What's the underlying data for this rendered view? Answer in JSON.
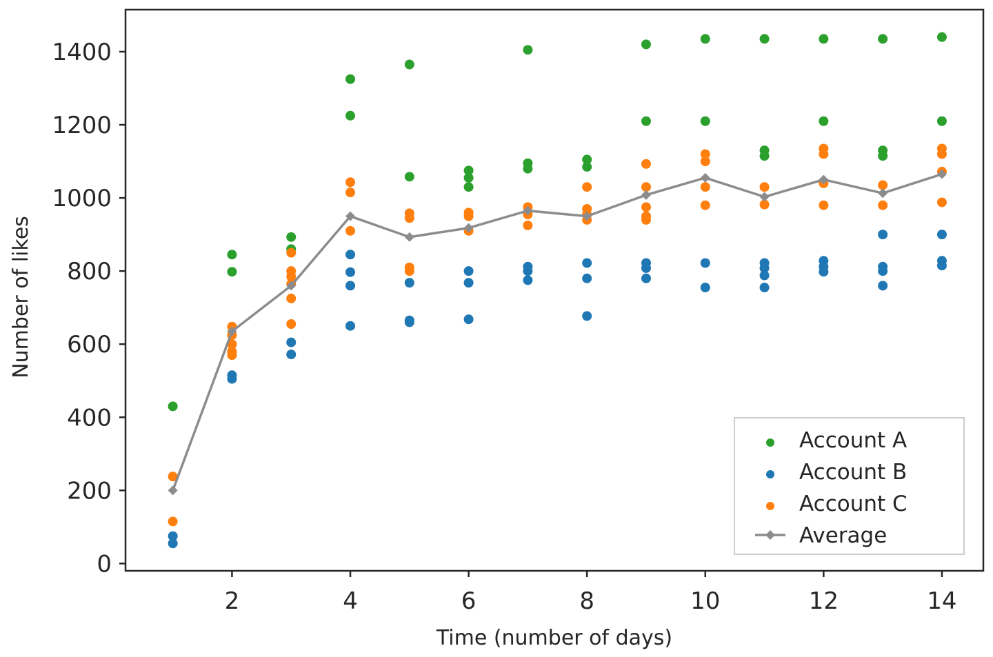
{
  "chart_data": {
    "type": "scatter",
    "title": "",
    "xlabel": "Time (number of days)",
    "ylabel": "Number of likes",
    "xlim": [
      0.2,
      14.7
    ],
    "ylim": [
      -20,
      1515
    ],
    "xticks": [
      2,
      4,
      6,
      8,
      10,
      12,
      14
    ],
    "yticks": [
      0,
      200,
      400,
      600,
      800,
      1000,
      1200,
      1400
    ],
    "legend_position": "lower-right",
    "series": [
      {
        "name": "Account A",
        "color": "#2ca02c",
        "points": [
          [
            1,
            430
          ],
          [
            2,
            845
          ],
          [
            2,
            798
          ],
          [
            3,
            893
          ],
          [
            3,
            860
          ],
          [
            4,
            1325
          ],
          [
            4,
            1225
          ],
          [
            5,
            1365
          ],
          [
            5,
            1058
          ],
          [
            6,
            1075
          ],
          [
            6,
            1055
          ],
          [
            6,
            1030
          ],
          [
            7,
            1405
          ],
          [
            7,
            1095
          ],
          [
            7,
            1080
          ],
          [
            8,
            1105
          ],
          [
            8,
            1085
          ],
          [
            9,
            1420
          ],
          [
            9,
            1210
          ],
          [
            10,
            1435
          ],
          [
            10,
            1210
          ],
          [
            11,
            1435
          ],
          [
            11,
            1130
          ],
          [
            11,
            1115
          ],
          [
            12,
            1435
          ],
          [
            12,
            1210
          ],
          [
            13,
            1435
          ],
          [
            13,
            1130
          ],
          [
            13,
            1115
          ],
          [
            14,
            1440
          ],
          [
            14,
            1210
          ]
        ]
      },
      {
        "name": "Account B",
        "color": "#1f77b4",
        "points": [
          [
            1,
            75
          ],
          [
            1,
            55
          ],
          [
            2,
            515
          ],
          [
            2,
            505
          ],
          [
            3,
            605
          ],
          [
            3,
            572
          ],
          [
            4,
            845
          ],
          [
            4,
            797
          ],
          [
            4,
            760
          ],
          [
            4,
            650
          ],
          [
            5,
            768
          ],
          [
            5,
            665
          ],
          [
            5,
            660
          ],
          [
            6,
            800
          ],
          [
            6,
            768
          ],
          [
            6,
            668
          ],
          [
            7,
            812
          ],
          [
            7,
            800
          ],
          [
            7,
            775
          ],
          [
            8,
            822
          ],
          [
            8,
            780
          ],
          [
            8,
            677
          ],
          [
            9,
            822
          ],
          [
            9,
            808
          ],
          [
            9,
            780
          ],
          [
            10,
            822
          ],
          [
            10,
            755
          ],
          [
            11,
            822
          ],
          [
            11,
            808
          ],
          [
            11,
            788
          ],
          [
            11,
            755
          ],
          [
            12,
            828
          ],
          [
            12,
            812
          ],
          [
            12,
            798
          ],
          [
            13,
            900
          ],
          [
            13,
            812
          ],
          [
            13,
            800
          ],
          [
            13,
            760
          ],
          [
            14,
            900
          ],
          [
            14,
            828
          ],
          [
            14,
            815
          ]
        ]
      },
      {
        "name": "Account C",
        "color": "#ff7f0e",
        "points": [
          [
            1,
            238
          ],
          [
            1,
            115
          ],
          [
            2,
            648
          ],
          [
            2,
            625
          ],
          [
            2,
            600
          ],
          [
            2,
            580
          ],
          [
            2,
            570
          ],
          [
            3,
            850
          ],
          [
            3,
            800
          ],
          [
            3,
            785
          ],
          [
            3,
            765
          ],
          [
            3,
            725
          ],
          [
            3,
            655
          ],
          [
            4,
            1043
          ],
          [
            4,
            1015
          ],
          [
            4,
            910
          ],
          [
            5,
            958
          ],
          [
            5,
            945
          ],
          [
            5,
            810
          ],
          [
            5,
            800
          ],
          [
            6,
            960
          ],
          [
            6,
            950
          ],
          [
            6,
            910
          ],
          [
            7,
            975
          ],
          [
            7,
            955
          ],
          [
            7,
            925
          ],
          [
            8,
            1030
          ],
          [
            8,
            970
          ],
          [
            8,
            955
          ],
          [
            8,
            940
          ],
          [
            9,
            1093
          ],
          [
            9,
            1030
          ],
          [
            9,
            975
          ],
          [
            9,
            950
          ],
          [
            9,
            940
          ],
          [
            10,
            1120
          ],
          [
            10,
            1100
          ],
          [
            10,
            1030
          ],
          [
            10,
            980
          ],
          [
            11,
            1030
          ],
          [
            11,
            982
          ],
          [
            12,
            1135
          ],
          [
            12,
            1120
          ],
          [
            12,
            1040
          ],
          [
            12,
            980
          ],
          [
            13,
            1035
          ],
          [
            13,
            980
          ],
          [
            14,
            1135
          ],
          [
            14,
            1120
          ],
          [
            14,
            1072
          ],
          [
            14,
            988
          ]
        ]
      },
      {
        "name": "Average",
        "color": "#8c8c8c",
        "style": "line-marker",
        "x": [
          1,
          2,
          3,
          4,
          5,
          6,
          7,
          8,
          9,
          10,
          11,
          12,
          13,
          14
        ],
        "y": [
          200,
          635,
          760,
          950,
          893,
          918,
          965,
          950,
          1008,
          1055,
          1003,
          1050,
          1013,
          1065
        ]
      }
    ]
  }
}
